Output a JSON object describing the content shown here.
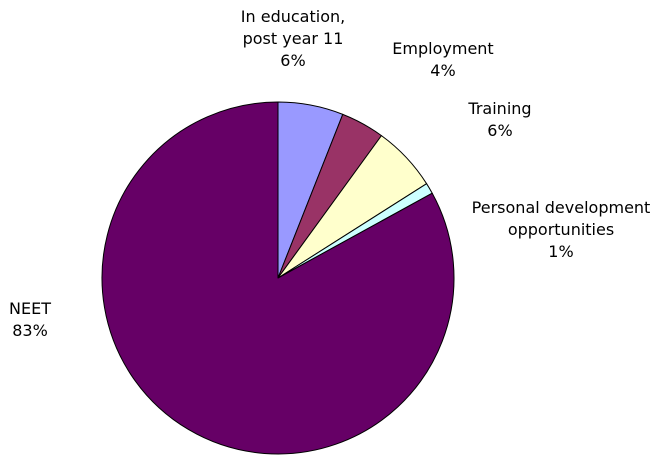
{
  "chart_data": {
    "type": "pie",
    "title": "",
    "start_angle_deg": 0,
    "direction": "clockwise",
    "slices": [
      {
        "label_lines": [
          "In education,",
          "post year 11"
        ],
        "value_label": "6%",
        "value": 6,
        "color": "#9999ff"
      },
      {
        "label_lines": [
          "Employment"
        ],
        "value_label": "4%",
        "value": 4,
        "color": "#993366"
      },
      {
        "label_lines": [
          "Training"
        ],
        "value_label": "6%",
        "value": 6,
        "color": "#ffffcc"
      },
      {
        "label_lines": [
          "Personal development",
          "opportunities"
        ],
        "value_label": "1%",
        "value": 1,
        "color": "#ccffff"
      },
      {
        "label_lines": [
          "NEET"
        ],
        "value_label": "83%",
        "value": 83,
        "color": "#660066"
      }
    ]
  }
}
